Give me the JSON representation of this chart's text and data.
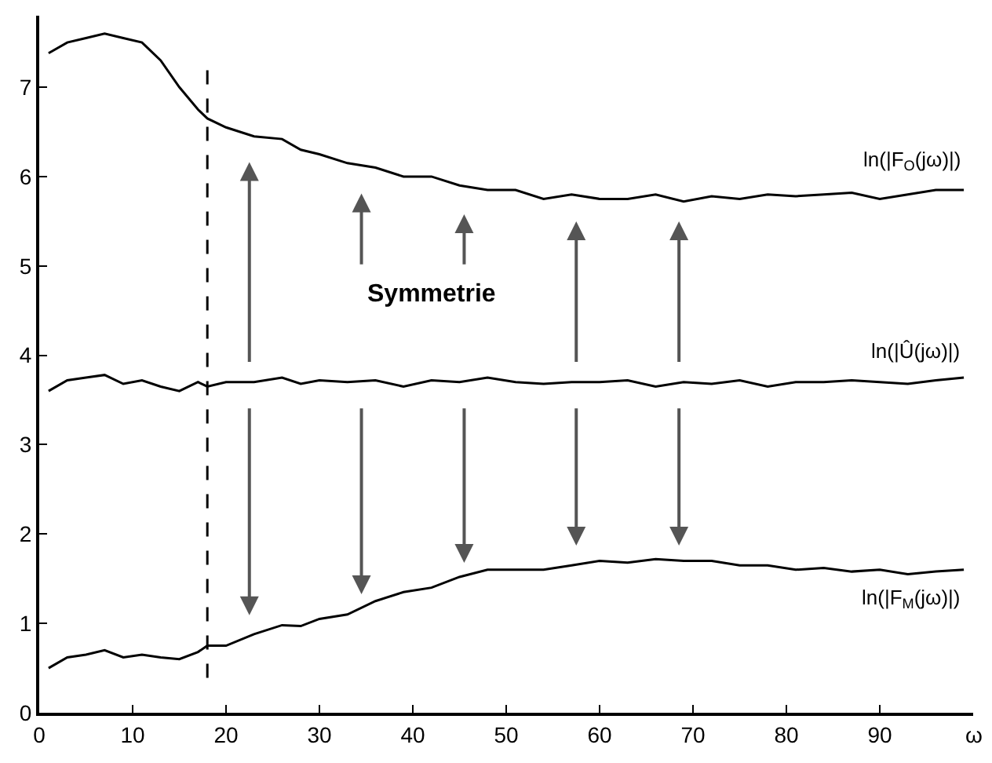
{
  "chart_data": {
    "type": "line",
    "xlabel": "ω",
    "xlim": [
      0,
      100
    ],
    "ylim": [
      0,
      7.8
    ],
    "xticks": [
      0,
      10,
      20,
      30,
      40,
      50,
      60,
      70,
      80,
      90
    ],
    "yticks": [
      0,
      1,
      2,
      3,
      4,
      5,
      6,
      7
    ],
    "x": [
      1,
      3,
      5,
      7,
      9,
      11,
      13,
      15,
      17,
      18,
      20,
      23,
      26,
      28,
      30,
      33,
      36,
      39,
      42,
      45,
      48,
      51,
      54,
      57,
      60,
      63,
      66,
      69,
      72,
      75,
      78,
      81,
      84,
      87,
      90,
      93,
      96,
      99
    ],
    "series": [
      {
        "name": "ln(|F$_{O}$(jω)|)",
        "color": "#000000",
        "values": [
          7.38,
          7.5,
          7.55,
          7.6,
          7.55,
          7.5,
          7.3,
          7.0,
          6.75,
          6.65,
          6.55,
          6.45,
          6.42,
          6.3,
          6.25,
          6.15,
          6.1,
          6.0,
          6.0,
          5.9,
          5.85,
          5.85,
          5.75,
          5.8,
          5.75,
          5.75,
          5.8,
          5.72,
          5.78,
          5.75,
          5.8,
          5.78,
          5.8,
          5.82,
          5.75,
          5.8,
          5.85,
          5.85
        ]
      },
      {
        "name": "ln(|Û(jω)|)",
        "color": "#000000",
        "values": [
          3.6,
          3.72,
          3.75,
          3.78,
          3.68,
          3.72,
          3.65,
          3.6,
          3.7,
          3.65,
          3.7,
          3.7,
          3.75,
          3.68,
          3.72,
          3.7,
          3.72,
          3.65,
          3.72,
          3.7,
          3.75,
          3.7,
          3.68,
          3.7,
          3.7,
          3.72,
          3.65,
          3.7,
          3.68,
          3.72,
          3.65,
          3.7,
          3.7,
          3.72,
          3.7,
          3.68,
          3.72,
          3.75
        ]
      },
      {
        "name": "ln(|F$_{M}$(jω)|)",
        "color": "#000000",
        "values": [
          0.5,
          0.62,
          0.65,
          0.7,
          0.62,
          0.65,
          0.62,
          0.6,
          0.68,
          0.75,
          0.75,
          0.88,
          0.98,
          0.97,
          1.05,
          1.1,
          1.25,
          1.35,
          1.4,
          1.52,
          1.6,
          1.6,
          1.6,
          1.65,
          1.7,
          1.68,
          1.72,
          1.7,
          1.7,
          1.65,
          1.65,
          1.6,
          1.62,
          1.58,
          1.6,
          1.55,
          1.58,
          1.6
        ]
      }
    ],
    "ref_lines": [
      {
        "axis": "x",
        "value": 18,
        "color": "#000000",
        "line_style": "dashed"
      }
    ],
    "annotations": [
      "Symmetrie"
    ],
    "legend": false,
    "marker": "none",
    "line_style": "solid"
  }
}
